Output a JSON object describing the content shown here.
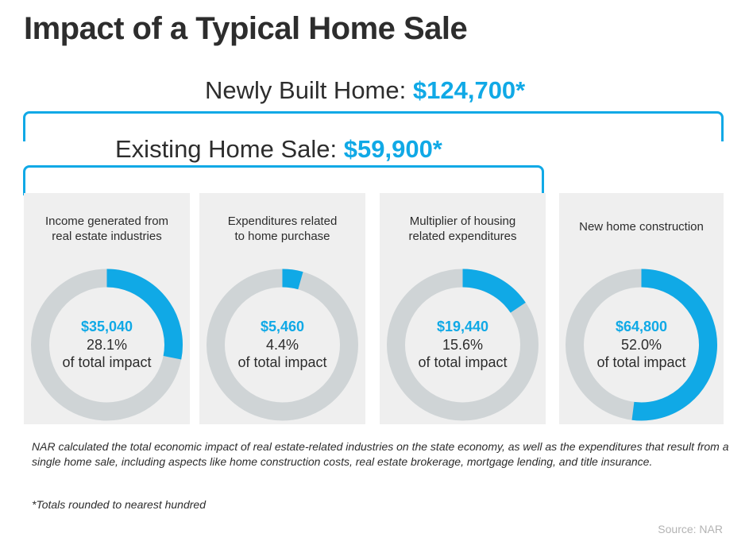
{
  "title": "Impact of a Typical Home Sale",
  "totals": {
    "new_label": "Newly Built Home:",
    "new_value": "$124,700*",
    "existing_label": "Existing Home Sale:",
    "existing_value": "$59,900*"
  },
  "colors": {
    "accent": "#10a9e6",
    "ring_track": "#cfd4d6",
    "panel_bg": "#efefef"
  },
  "chart_data": {
    "type": "pie",
    "series": [
      {
        "label": "Income generated from real estate industries",
        "amount": "$35,040",
        "percent_text": "28.1%",
        "value": 28.1,
        "caption": "of total impact"
      },
      {
        "label": "Expenditures related to home purchase",
        "amount": "$5,460",
        "percent_text": "4.4%",
        "value": 4.4,
        "caption": "of total impact"
      },
      {
        "label": "Multiplier of housing related expenditures",
        "amount": "$19,440",
        "percent_text": "15.6%",
        "value": 15.6,
        "caption": "of total impact"
      },
      {
        "label": "New home construction",
        "amount": "$64,800",
        "percent_text": "52.0%",
        "value": 52.0,
        "caption": "of total impact"
      }
    ]
  },
  "panels": [
    {
      "label_line1": "Income generated from",
      "label_line2": "real estate industries"
    },
    {
      "label_line1": "Expenditures related",
      "label_line2": "to home purchase"
    },
    {
      "label_line1": "Multiplier of housing",
      "label_line2": "related expenditures"
    },
    {
      "label_line1": "New home construction",
      "label_line2": ""
    }
  ],
  "note": "NAR calculated the total economic impact of real estate-related industries on the state economy, as well as the expenditures that result from a single home sale, including aspects like home construction costs, real estate brokerage, mortgage lending, and title insurance.",
  "footnote": "*Totals rounded to nearest hundred",
  "source": "Source: NAR"
}
